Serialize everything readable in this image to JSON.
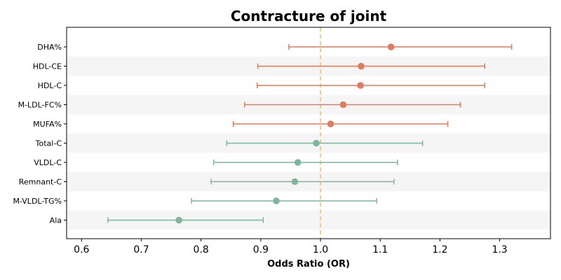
{
  "chart_data": {
    "type": "forest",
    "title": "Contracture of joint",
    "xlabel": "Odds Ratio (OR)",
    "ylabel": "",
    "xlim": [
      0.575,
      1.385
    ],
    "xticks": [
      0.6,
      0.7,
      0.8,
      0.9,
      1.0,
      1.1,
      1.2,
      1.3
    ],
    "xtick_labels": [
      "0.6",
      "0.7",
      "0.8",
      "0.9",
      "1.0",
      "1.1",
      "1.2",
      "1.3"
    ],
    "reference_line": 1.0,
    "reference_color": "#f5c98a",
    "band_color": "#f5f5f5",
    "rows": [
      {
        "label": "DHA%",
        "or": 1.118,
        "lower": 0.947,
        "upper": 1.32,
        "color": "#e07b5f"
      },
      {
        "label": "HDL-CE",
        "or": 1.068,
        "lower": 0.895,
        "upper": 1.275,
        "color": "#e07b5f"
      },
      {
        "label": "HDL-C",
        "or": 1.067,
        "lower": 0.894,
        "upper": 1.275,
        "color": "#e07b5f"
      },
      {
        "label": "M-LDL-FC%",
        "or": 1.038,
        "lower": 0.873,
        "upper": 1.234,
        "color": "#e07b5f"
      },
      {
        "label": "MUFA%",
        "or": 1.017,
        "lower": 0.854,
        "upper": 1.213,
        "color": "#e07b5f"
      },
      {
        "label": "Total-C",
        "or": 0.993,
        "lower": 0.843,
        "upper": 1.171,
        "color": "#7fb69b"
      },
      {
        "label": "VLDL-C",
        "or": 0.962,
        "lower": 0.821,
        "upper": 1.129,
        "color": "#7fb69b"
      },
      {
        "label": "Remnant-C",
        "or": 0.957,
        "lower": 0.817,
        "upper": 1.123,
        "color": "#7fb69b"
      },
      {
        "label": "M-VLDL-TG%",
        "or": 0.926,
        "lower": 0.784,
        "upper": 1.094,
        "color": "#7fb69b"
      },
      {
        "label": "Ala",
        "or": 0.763,
        "lower": 0.644,
        "upper": 0.904,
        "color": "#7fb69b"
      }
    ]
  }
}
